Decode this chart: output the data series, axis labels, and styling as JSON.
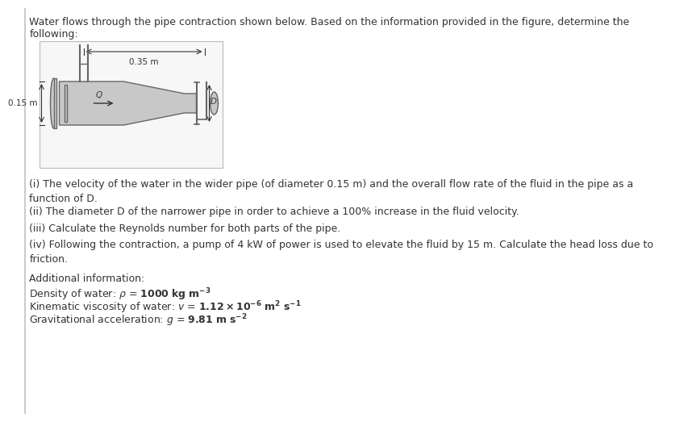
{
  "title_line1": "Water flows through the pipe contraction shown below. Based on the information provided in the figure, determine the",
  "title_line2": "following:",
  "background_color": "#ffffff",
  "questions": [
    "(i) The velocity of the water in the wider pipe (of diameter 0.15 m) and the overall flow rate of the fluid in the pipe as a\nfunction of D.",
    "(ii) The diameter D of the narrower pipe in order to achieve a 100% increase in the fluid velocity.",
    "(iii) Calculate the Reynolds number for both parts of the pipe.",
    "(iv) Following the contraction, a pump of 4 kW of power is used to elevate the fluid by 15 m. Calculate the head loss due to\nfriction."
  ],
  "additional_info_label": "Additional information:",
  "pipe_color": "#c8c8c8",
  "pipe_edge": "#666666",
  "dim_035": "0.35 m",
  "dim_015": "0.15 m",
  "label_Q": "Q",
  "label_D": "D",
  "text_color": "#333333",
  "border_color": "#cccccc"
}
